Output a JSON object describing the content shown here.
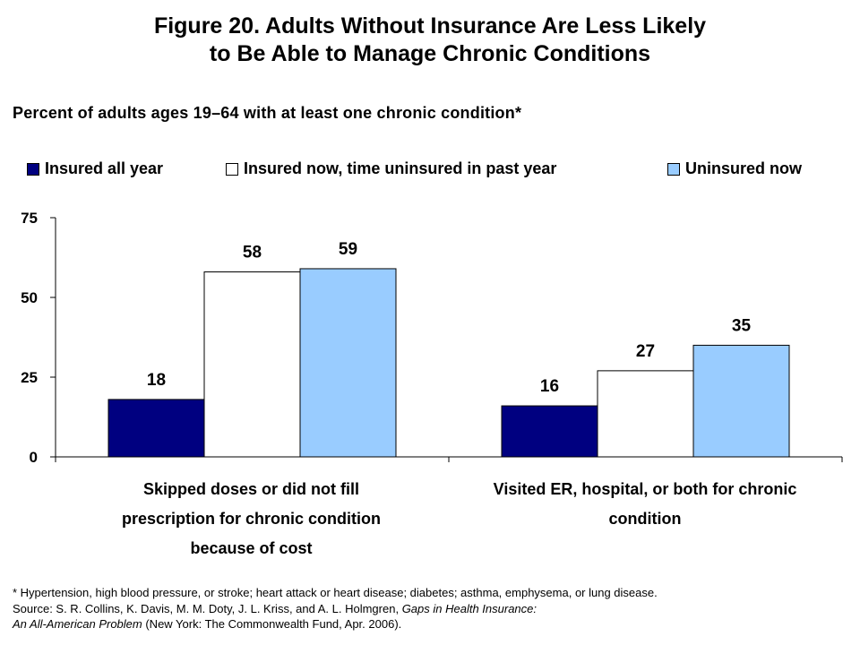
{
  "title": {
    "line1": "Figure 20. Adults Without Insurance Are Less Likely",
    "line2": "to Be Able to Manage Chronic Conditions"
  },
  "subtitle": "Percent of adults ages 19–64 with at least one chronic condition*",
  "colors": {
    "insured_all_year": "#000080",
    "insured_now_uninsured_past_year": "#ffffff",
    "uninsured_now": "#99ccff",
    "axis": "#000000"
  },
  "chart_data": {
    "type": "bar",
    "categories": [
      "Skipped doses or did not fill prescription for chronic condition because of cost",
      "Visited ER, hospital, or both for chronic condition"
    ],
    "category_lines": [
      [
        "Skipped doses or did not fill",
        "prescription for chronic condition",
        "because of cost"
      ],
      [
        "Visited ER, hospital, or both for chronic",
        "condition"
      ]
    ],
    "series": [
      {
        "name": "Insured all year",
        "values": [
          18,
          16
        ],
        "color": "#000080"
      },
      {
        "name": "Insured now, time uninsured in past year",
        "values": [
          58,
          27
        ],
        "color": "#ffffff"
      },
      {
        "name": "Uninsured now",
        "values": [
          59,
          35
        ],
        "color": "#99ccff"
      }
    ],
    "ylim": [
      0,
      75
    ],
    "yticks": [
      0,
      25,
      50,
      75
    ],
    "grid": false,
    "legend_position": "top",
    "data_labels": true
  },
  "footnote": {
    "line1": "* Hypertension, high blood pressure, or stroke; heart attack or heart disease; diabetes; asthma, emphysema, or lung disease.",
    "line2_plain": "Source: S. R. Collins, K. Davis, M. M. Doty, J. L. Kriss, and A. L. Holmgren, ",
    "line2_italic": "Gaps in Health Insurance:",
    "line3_italic": "An All-American Problem",
    "line3_plain": " (New York: The Commonwealth Fund, Apr. 2006)."
  }
}
